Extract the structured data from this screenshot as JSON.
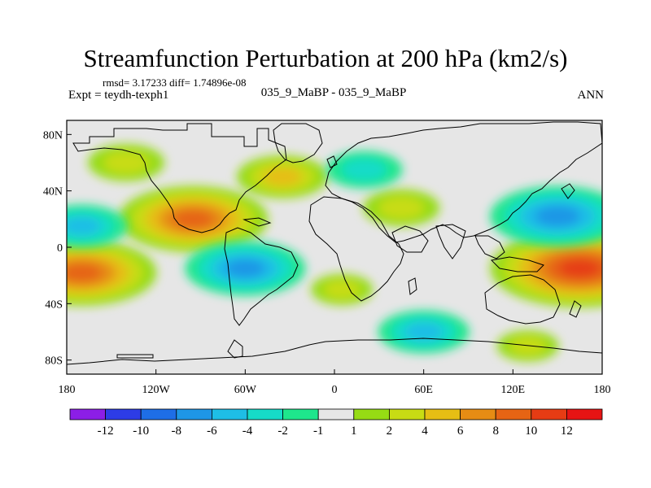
{
  "chart_data": {
    "type": "heatmap",
    "title": "Streamfunction Perturbation at 200 hPa (km2/s)",
    "stats_text": "rmsd= 3.17233 diff= 1.74896e-08",
    "left_subtitle": "Expt = teydh-texph1",
    "center_subtitle": "035_9_MaBP - 035_9_MaBP",
    "right_subtitle": "ANN",
    "x_ticks": [
      {
        "value": -180,
        "label": "180"
      },
      {
        "value": -120,
        "label": "120W"
      },
      {
        "value": -60,
        "label": "60W"
      },
      {
        "value": 0,
        "label": "0"
      },
      {
        "value": 60,
        "label": "60E"
      },
      {
        "value": 120,
        "label": "120E"
      },
      {
        "value": 180,
        "label": "180"
      }
    ],
    "y_ticks": [
      {
        "value": 80,
        "label": "80N"
      },
      {
        "value": 40,
        "label": "40N"
      },
      {
        "value": 0,
        "label": "0"
      },
      {
        "value": -40,
        "label": "40S"
      },
      {
        "value": -80,
        "label": "80S"
      }
    ],
    "xlim": [
      -180,
      180
    ],
    "ylim": [
      -90,
      90
    ],
    "colorbar": {
      "labels": [
        "-12",
        "-10",
        "-8",
        "-6",
        "-4",
        "-2",
        "-1",
        "1",
        "2",
        "4",
        "6",
        "8",
        "10",
        "12"
      ],
      "colors": [
        "#8c1ee6",
        "#2d3ce6",
        "#1e6ee6",
        "#1e96e6",
        "#1ebee6",
        "#16dcc8",
        "#1ee68c",
        "#e6e6e6",
        "#96dc14",
        "#c8dc14",
        "#e6be14",
        "#e68c14",
        "#e66414",
        "#e63c14",
        "#e61414"
      ]
    },
    "anomalies": [
      {
        "lon": -95,
        "lat": 20,
        "value": 8
      },
      {
        "lon": -170,
        "lat": -18,
        "value": 8
      },
      {
        "lon": 165,
        "lat": -15,
        "value": 10
      },
      {
        "lon": -35,
        "lat": 50,
        "value": 4
      },
      {
        "lon": 45,
        "lat": 28,
        "value": 3
      },
      {
        "lon": 150,
        "lat": 22,
        "value": -7
      },
      {
        "lon": -60,
        "lat": -15,
        "value": -6
      },
      {
        "lon": 60,
        "lat": -60,
        "value": -4
      },
      {
        "lon": 20,
        "lat": 55,
        "value": -3
      },
      {
        "lon": -170,
        "lat": 15,
        "value": -4
      },
      {
        "lon": 130,
        "lat": -70,
        "value": 2
      },
      {
        "lon": -140,
        "lat": 60,
        "value": 3
      },
      {
        "lon": 5,
        "lat": -30,
        "value": 2
      }
    ]
  }
}
